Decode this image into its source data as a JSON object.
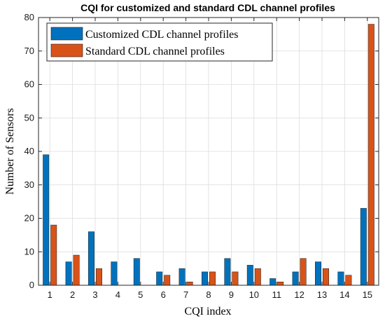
{
  "chart_data": {
    "type": "bar",
    "title": "CQI for customized and standard CDL channel profiles",
    "xlabel": "CQI index",
    "ylabel": "Number of Sensors",
    "categories": [
      "1",
      "2",
      "3",
      "4",
      "5",
      "6",
      "7",
      "8",
      "9",
      "10",
      "11",
      "12",
      "13",
      "14",
      "15"
    ],
    "series": [
      {
        "name": "Customized CDL channel profiles",
        "color": "#0072BD",
        "values": [
          39,
          7,
          16,
          7,
          8,
          4,
          5,
          4,
          8,
          6,
          2,
          4,
          7,
          4,
          23
        ]
      },
      {
        "name": "Standard CDL channel profiles",
        "color": "#D95319",
        "values": [
          18,
          9,
          5,
          0,
          0,
          3,
          1,
          4,
          4,
          5,
          1,
          8,
          5,
          3,
          78
        ]
      }
    ],
    "ylim": [
      0,
      80
    ],
    "yticks": [
      0,
      10,
      20,
      30,
      40,
      50,
      60,
      70,
      80
    ],
    "grid": true,
    "legend_position": "top-left"
  }
}
